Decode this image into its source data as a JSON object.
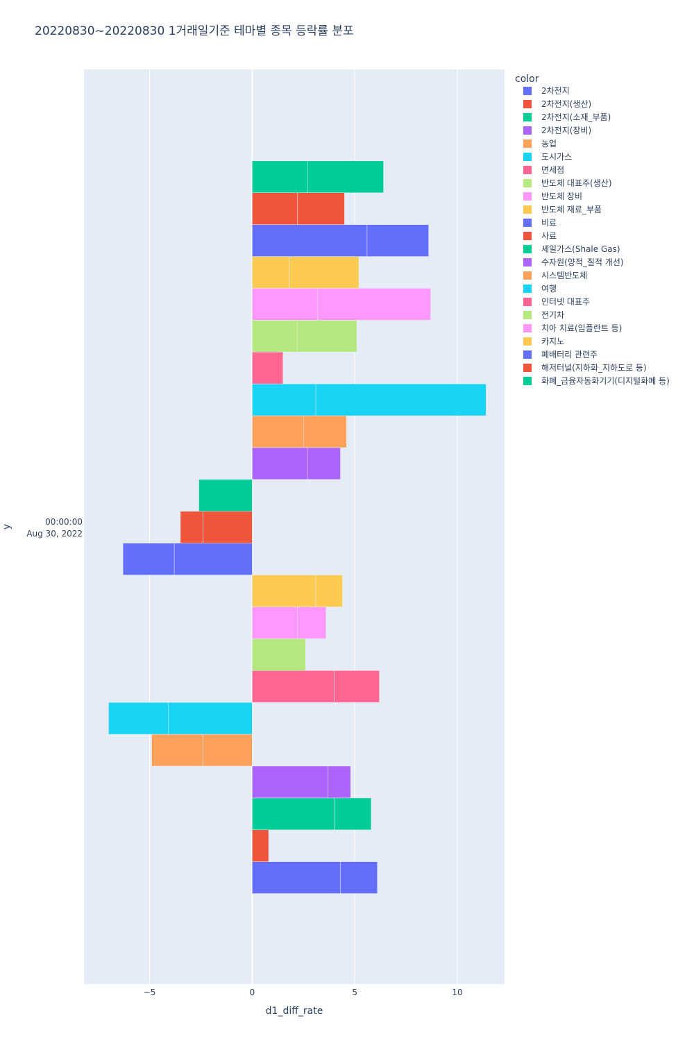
{
  "chart_data": {
    "type": "bar",
    "orientation": "horizontal",
    "barmode": "relative",
    "title": "20220830~20220830 1거래일기준 테마별 종목 등락률 분포",
    "xlabel": "d1_diff_rate",
    "ylabel": "y",
    "y_category_label_line1": "00:00:00",
    "y_category_label_line2": "Aug 30, 2022",
    "xlim": [
      -8.2,
      12.3
    ],
    "x_ticks": [
      -5,
      0,
      5,
      10
    ],
    "x_tick_labels": [
      "−5",
      "0",
      "5",
      "10"
    ],
    "grid": true,
    "legend": {
      "title": "color",
      "placement": "right"
    },
    "series": [
      {
        "name": "2차전지",
        "color": "#636efa",
        "segments": [
          4.3,
          1.8
        ]
      },
      {
        "name": "2차전지(생산)",
        "color": "#EF553B",
        "segments": [
          0.8
        ]
      },
      {
        "name": "2차전지(소재_부품)",
        "color": "#00cc96",
        "segments": [
          4.0,
          1.8
        ]
      },
      {
        "name": "2차전지(장비)",
        "color": "#ab63fa",
        "segments": [
          3.7,
          1.1
        ]
      },
      {
        "name": "농업",
        "color": "#FFA15A",
        "segments": [
          -2.4,
          -2.5
        ]
      },
      {
        "name": "도시가스",
        "color": "#19d3f3",
        "segments": [
          -4.1,
          -2.9
        ]
      },
      {
        "name": "면세점",
        "color": "#FF6692",
        "segments": [
          4.0,
          2.2
        ]
      },
      {
        "name": "반도체 대표주(생산)",
        "color": "#B6E880",
        "segments": [
          2.6
        ]
      },
      {
        "name": "반도체 장비",
        "color": "#FF97FF",
        "segments": [
          2.2,
          1.4
        ]
      },
      {
        "name": "반도체 재료_부품",
        "color": "#FECB52",
        "segments": [
          3.1,
          1.3
        ]
      },
      {
        "name": "비료",
        "color": "#636efa",
        "segments": [
          -3.8,
          -2.5
        ]
      },
      {
        "name": "사료",
        "color": "#EF553B",
        "segments": [
          -2.4,
          -1.1
        ]
      },
      {
        "name": "셰일가스(Shale Gas)",
        "color": "#00cc96",
        "segments": [
          -2.6
        ]
      },
      {
        "name": "수자원(양적_질적 개선)",
        "color": "#ab63fa",
        "segments": [
          2.7,
          1.6
        ]
      },
      {
        "name": "시스템반도체",
        "color": "#FFA15A",
        "segments": [
          2.5,
          2.1
        ]
      },
      {
        "name": "여행",
        "color": "#19d3f3",
        "segments": [
          3.1,
          8.3
        ]
      },
      {
        "name": "인터넷 대표주",
        "color": "#FF6692",
        "segments": [
          1.5
        ]
      },
      {
        "name": "전기차",
        "color": "#B6E880",
        "segments": [
          2.2,
          2.9
        ]
      },
      {
        "name": "치아 치료(임플란트 등)",
        "color": "#FF97FF",
        "segments": [
          3.2,
          5.5
        ]
      },
      {
        "name": "카지노",
        "color": "#FECB52",
        "segments": [
          1.8,
          3.4
        ]
      },
      {
        "name": "폐배터리 관련주",
        "color": "#636efa",
        "segments": [
          5.6,
          3.0
        ]
      },
      {
        "name": "해저터널(지하화_지하도로 등)",
        "color": "#EF553B",
        "segments": [
          2.2,
          2.3
        ]
      },
      {
        "name": "화폐_금융자동화기기(디지털화폐 등)",
        "color": "#00cc96",
        "segments": [
          2.7,
          3.7
        ]
      }
    ]
  }
}
